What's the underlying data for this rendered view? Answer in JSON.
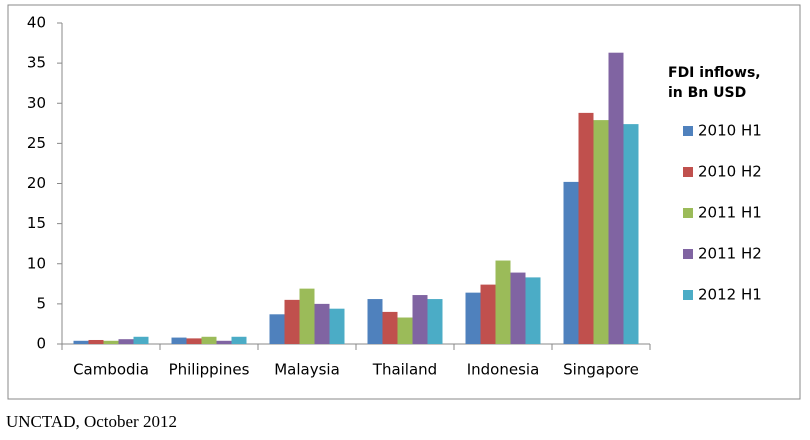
{
  "chart_data": {
    "type": "bar",
    "categories": [
      "Cambodia",
      "Philippines",
      "Malaysia",
      "Thailand",
      "Indonesia",
      "Singapore"
    ],
    "series": [
      {
        "name": "2010 H1",
        "color": "#4f81bd",
        "values": [
          0.4,
          0.8,
          3.7,
          5.6,
          6.4,
          20.2
        ]
      },
      {
        "name": "2010 H2",
        "color": "#c0504d",
        "values": [
          0.5,
          0.7,
          5.5,
          4.0,
          7.4,
          28.8
        ]
      },
      {
        "name": "2011 H1",
        "color": "#9bbb59",
        "values": [
          0.4,
          0.9,
          6.9,
          3.3,
          10.4,
          27.9
        ]
      },
      {
        "name": "2011 H2",
        "color": "#8064a2",
        "values": [
          0.6,
          0.4,
          5.0,
          6.1,
          8.9,
          36.3
        ]
      },
      {
        "name": "2012 H1",
        "color": "#4bacc6",
        "values": [
          0.9,
          0.9,
          4.4,
          5.6,
          8.3,
          27.4
        ]
      }
    ],
    "legend_title": [
      "FDI inflows,",
      "in Bn USD"
    ],
    "legend_position": "right",
    "ylim": [
      0,
      40
    ],
    "yticks": [
      0,
      5,
      10,
      15,
      20,
      25,
      30,
      35,
      40
    ],
    "grid": false,
    "source": "UNCTAD, October 2012"
  }
}
